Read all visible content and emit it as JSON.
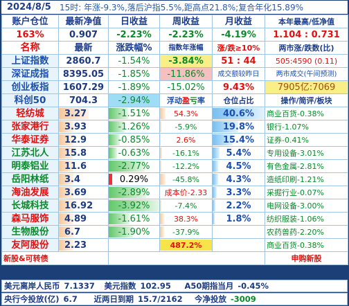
{
  "titlebar": {
    "date": "2024/8/5",
    "info": "15时: 年涨-9.3%,落后沪指5.5%,距高点21.8%;复合年化15.89%"
  },
  "summary_headers": [
    "账户仓位",
    "最新净值",
    "日收益",
    "周收益",
    "月收益",
    "本年最高/低净值"
  ],
  "summary_values": [
    "163%",
    "0.907",
    "-2.23%",
    "-2.23%",
    "-4.19%",
    "1.104 : 0.731"
  ],
  "index_headers": [
    "名称",
    "最新",
    "涨跌幅%",
    "指数年涨幅",
    "涨/跌≥10%",
    "两市涨/跌数(比)"
  ],
  "indices": [
    {
      "name": "上证指数",
      "price": "2860.7",
      "chg": "-1.54%",
      "yr": "-3.84%",
      "c5": "51 : 44",
      "c6": "505:4590 (0.11)"
    },
    {
      "name": "深证成指",
      "price": "8395.05",
      "chg": "-1.85%",
      "yr": "-11.86%",
      "c5": "成交额较昨日",
      "c6": "两市成交(午间预测)"
    },
    {
      "name": "创业板指",
      "price": "1607.29",
      "chg": "-1.89%",
      "yr": "-15.02%",
      "c5": "9.43%",
      "c6": "7905亿:7069"
    },
    {
      "name": "科创50",
      "price": "704.3",
      "chg": "-2.94%",
      "yr": "浮动盈亏率",
      "c5": "仓位占比",
      "c6": "操作/简评/板块"
    }
  ],
  "stocks": [
    {
      "name": "轻纺城",
      "price": "3.27",
      "chg": "-1.51%",
      "pnl": "54.3%",
      "pos": "40.6%",
      "note": "商业百货-0.38%"
    },
    {
      "name": "张家港行",
      "price": "3.93",
      "chg": "-1.26%",
      "pnl": "-5.9%",
      "pos": "19.8%",
      "note": "银行-1.07%"
    },
    {
      "name": "华泰证券",
      "price": "12.9",
      "chg": "-0.85%",
      "pnl": "2.6%",
      "pos": "15.4%",
      "note": "证券-0.41%"
    },
    {
      "name": "江苏北人",
      "price": "15.8",
      "chg": "-0.63%",
      "pnl": "-16.1%",
      "pos": "5.4%",
      "note": "专用设备-3.01%"
    },
    {
      "name": "明泰铝业",
      "price": "11.6",
      "chg": "-2.77%",
      "pnl": "-12.2%",
      "pos": "4.5%",
      "note": "有色金属-2.81%"
    },
    {
      "name": "岳阳林纸",
      "price": "3.4",
      "chg": "0.29%",
      "pnl": "-45.8%",
      "pos": "4.3%",
      "note": "造纸印刷-1.21%"
    },
    {
      "name": "海油发展",
      "price": "3.69",
      "chg": "-2.89%",
      "pnl": "成本价-2.33",
      "pos": "3.3%",
      "note": "采掘行业-0.07%"
    },
    {
      "name": "长城科技",
      "price": "16.92",
      "chg": "-3.92%",
      "pnl": "-7.4%",
      "pos": "2.2%",
      "note": "电网设备-3.00%"
    },
    {
      "name": "森马服饰",
      "price": "4.89",
      "chg": "-1.61%",
      "pnl": "38.3%",
      "pos": "1.8%",
      "note": "纺织服装-1.06%"
    },
    {
      "name": "生物股份",
      "price": "6.7",
      "chg": "-1.90%",
      "pnl": "-37.9%",
      "pos": "",
      "note": "农药兽药-2.20%"
    },
    {
      "name": "友阿股份",
      "price": "2.23",
      "chg": "",
      "pnl": "487.2%",
      "pos": "",
      "note": "商业百货-0.38%"
    }
  ],
  "ipo_row": {
    "left": "新股&可转债",
    "right": "申购新股"
  },
  "footer1": {
    "l1": "美元离岸人民币",
    "v1": "7.1337",
    "l2": "美元指数",
    "v2": "102.95",
    "l3": "A50期指当月",
    "v3": "-0.45%"
  },
  "footer2": {
    "l1": "央行今投放(亿)",
    "v1": "6.7",
    "l2": "近两日到期",
    "v2": "15.7/2162",
    "l3": "今净投放",
    "v3": "-3009"
  },
  "colors": {
    "accent": "#1c3f78",
    "up": "#e01010",
    "down": "#0a8a2a",
    "label": "#1b3c8d"
  },
  "levels": {
    "pnl_bar_percent": [
      11,
      2,
      1,
      4,
      3,
      10,
      0,
      2,
      8,
      8,
      100
    ],
    "pos_bar_percent": [
      100,
      49,
      38,
      13,
      11,
      11,
      8,
      5,
      4,
      0,
      0
    ],
    "chg_bar_percent": [
      39,
      32,
      22,
      16,
      71,
      7,
      74,
      100,
      41,
      48,
      0
    ]
  }
}
